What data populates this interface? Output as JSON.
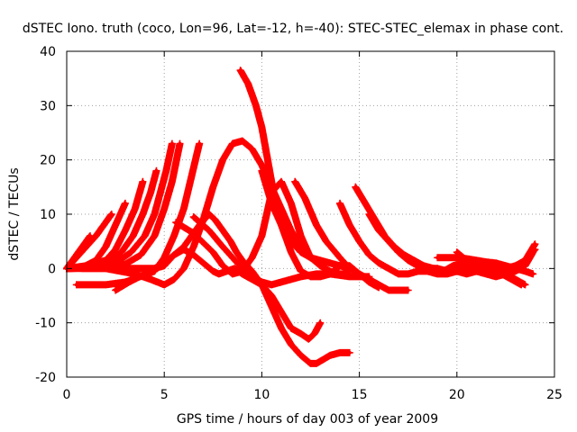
{
  "chart_data": {
    "type": "scatter",
    "title": "dSTEC Iono. truth (coco, Lon=96, Lat=-12, h=-40): STEC-STEC_elemax in phase cont.",
    "xlabel": "GPS time / hours of day 003 of year 2009",
    "ylabel": "dSTEC  / TECUs",
    "xlim": [
      0,
      25
    ],
    "ylim": [
      -20,
      40
    ],
    "xticks": [
      0,
      5,
      10,
      15,
      20,
      25
    ],
    "yticks": [
      -20,
      -10,
      0,
      10,
      20,
      30,
      40
    ],
    "xtick_labels": [
      "0",
      "5",
      "10",
      "15",
      "20",
      "25"
    ],
    "ytick_labels": [
      "-20",
      "-10",
      "0",
      "10",
      "20",
      "30",
      "40"
    ],
    "grid": true,
    "grid_style": "dotted",
    "legend": "none",
    "marker": "plus",
    "color": "#ff0000",
    "series": [
      {
        "x": [
          0.0,
          0.3,
          0.6,
          0.9,
          1.2
        ],
        "y": [
          0,
          1.5,
          3,
          4.5,
          6
        ]
      },
      {
        "x": [
          0.0,
          0.5,
          1.0,
          1.5,
          2.0,
          2.3
        ],
        "y": [
          0,
          2,
          4,
          6,
          8.5,
          10
        ]
      },
      {
        "x": [
          0.0,
          0.8,
          1.5,
          2.0,
          2.5,
          3.0
        ],
        "y": [
          0,
          0.2,
          1.5,
          4,
          8,
          12
        ]
      },
      {
        "x": [
          0.0,
          1.0,
          2.0,
          2.5,
          3.0,
          3.5,
          3.9
        ],
        "y": [
          0,
          0.5,
          1.5,
          3.5,
          7,
          11,
          16
        ]
      },
      {
        "x": [
          0.0,
          1.0,
          2.0,
          2.8,
          3.4,
          3.9,
          4.3,
          4.6
        ],
        "y": [
          0,
          0.3,
          1,
          3,
          6,
          10,
          14,
          18
        ]
      },
      {
        "x": [
          0.0,
          1.5,
          2.5,
          3.3,
          4.0,
          4.5,
          4.8,
          5.1,
          5.4
        ],
        "y": [
          0,
          0.2,
          1,
          3,
          6,
          10,
          14,
          18,
          23
        ]
      },
      {
        "x": [
          0.0,
          2.0,
          3.0,
          3.8,
          4.5,
          5.0,
          5.4,
          5.8
        ],
        "y": [
          0,
          0.2,
          0.8,
          2.5,
          6,
          11,
          16,
          23
        ]
      },
      {
        "x": [
          0.5,
          2.0,
          3.0,
          4.5,
          5.0,
          5.5,
          6.0,
          6.4,
          6.8
        ],
        "y": [
          -3,
          -3,
          -2.5,
          -0.5,
          2,
          6,
          11,
          17,
          23
        ]
      },
      {
        "x": [
          0.8,
          2.0,
          3.0,
          4.0,
          4.5,
          5.0,
          5.5,
          6.0,
          6.5,
          7.0,
          7.5,
          7.8,
          8.2,
          8.6,
          9.0,
          9.5,
          10.0,
          10.5,
          11.0,
          11.5,
          12.0,
          12.4,
          12.7,
          13.0
        ],
        "y": [
          0,
          0,
          0,
          0,
          0,
          0.5,
          2.5,
          3.5,
          2.5,
          1,
          -0.5,
          -1,
          -0.5,
          0,
          -1,
          -2,
          -3,
          -5,
          -8,
          -11,
          -12,
          -13,
          -12,
          -10
        ]
      },
      {
        "x": [
          2.5,
          3.2,
          4.0,
          5.0,
          6.0,
          6.8,
          7.3,
          7.6,
          8.0,
          8.4,
          8.7,
          9.0,
          9.5,
          10.0,
          10.5,
          11.0,
          11.5,
          12.0,
          12.5,
          12.8,
          13.5,
          14.0,
          14.5
        ],
        "y": [
          -4,
          -2.5,
          -1,
          1,
          4,
          8,
          10,
          9,
          7,
          5,
          3,
          1.5,
          -0.5,
          -3,
          -7,
          -11,
          -14,
          -16,
          -17.5,
          -17.5,
          -16,
          -15.5,
          -15.5
        ]
      },
      {
        "x": [
          0.0,
          2.0,
          3.5,
          4.3,
          5.0,
          5.5,
          6.0,
          6.5,
          7.0,
          7.5,
          8.0,
          8.5,
          9.0,
          9.5,
          10.0,
          10.5,
          11.0,
          11.5,
          12.0,
          12.5,
          13.0,
          13.5,
          14.0,
          14.5
        ],
        "y": [
          0,
          0,
          -1,
          -2,
          -3,
          -2,
          0,
          4,
          9,
          15,
          20,
          23,
          23.5,
          22,
          19,
          15,
          11,
          7,
          4,
          2,
          0.5,
          -0.5,
          -1,
          -1
        ]
      },
      {
        "x": [
          5.6,
          6.5,
          7.5,
          8.0,
          8.5,
          9.0,
          9.5,
          10.0,
          10.5,
          11.0,
          11.5,
          12.0,
          12.5,
          13.0
        ],
        "y": [
          8.5,
          6.5,
          3,
          0.5,
          -1,
          -0.5,
          2,
          6,
          14,
          16,
          12,
          6,
          2,
          1
        ]
      },
      {
        "x": [
          6.5,
          7.3,
          8.0,
          8.5,
          9.0,
          9.5,
          10.0,
          10.5,
          11.0,
          11.5,
          12.0,
          12.8,
          13.5,
          14.5,
          15.5
        ],
        "y": [
          9.5,
          7,
          4,
          2,
          0,
          -1.5,
          -2.5,
          -3,
          -2.5,
          -2,
          -1.5,
          -1,
          -1,
          -1.5,
          -1.5
        ]
      },
      {
        "x": [
          8.9,
          9.3,
          9.7,
          10.0,
          10.3,
          10.6,
          11.0,
          11.5,
          12.0,
          12.5,
          13.0,
          13.5,
          14.0,
          14.5,
          15.0,
          15.5,
          16.0
        ],
        "y": [
          36.5,
          34,
          30,
          26,
          20,
          14,
          8,
          3,
          -0.5,
          -1.5,
          -1.5,
          -1,
          0.5,
          0.5,
          -1,
          -2.5,
          -3.5
        ]
      },
      {
        "x": [
          10.0,
          10.5,
          11.0,
          11.5,
          12.0,
          12.5,
          13.0,
          13.5,
          14.0,
          14.5
        ],
        "y": [
          18,
          12,
          8,
          5,
          3,
          2,
          1.5,
          1,
          0.5,
          0
        ]
      },
      {
        "x": [
          11.7,
          12.2,
          12.8,
          13.3,
          14.0,
          14.5,
          15.0,
          15.5,
          16.0,
          16.5,
          17.0,
          17.5
        ],
        "y": [
          16,
          13,
          8,
          5,
          2,
          0,
          -1,
          -2,
          -3,
          -4,
          -4,
          -4
        ]
      },
      {
        "x": [
          14.0,
          14.5,
          15.0,
          15.5,
          16.0,
          16.5,
          17.0,
          17.5,
          18.0,
          18.5,
          19.0,
          19.5,
          20.0,
          20.5,
          21.0
        ],
        "y": [
          12,
          8,
          5,
          2.5,
          1,
          0,
          -1,
          -1,
          -0.5,
          -0.5,
          -1,
          -1,
          -0.5,
          0,
          0.5
        ]
      },
      {
        "x": [
          14.8,
          15.3,
          15.8,
          16.3,
          16.8,
          17.3,
          17.8,
          18.3,
          18.8,
          19.3,
          19.8,
          20.3,
          20.8,
          21.3,
          21.8,
          22.3,
          22.8,
          23.3
        ],
        "y": [
          15,
          12,
          9,
          6,
          4,
          2.5,
          1.5,
          0.5,
          0,
          -0.5,
          0.5,
          1,
          1,
          0.5,
          0,
          -1,
          -2,
          -3
        ]
      },
      {
        "x": [
          15.5,
          16.0,
          16.5,
          17.0,
          17.5,
          18.0,
          18.5,
          19.0,
          19.5,
          20.0,
          20.5,
          21.0,
          21.5,
          22.0,
          22.5,
          23.0,
          23.5
        ],
        "y": [
          10,
          7,
          5,
          3,
          1.5,
          0.5,
          0,
          0,
          -0.5,
          -0.5,
          -1,
          -0.5,
          0,
          0,
          -1,
          -2,
          -3
        ]
      },
      {
        "x": [
          19.0,
          19.5,
          20.0,
          20.5,
          21.0,
          21.5,
          22.0,
          22.5,
          23.0,
          23.5,
          23.9
        ],
        "y": [
          2,
          2,
          2,
          1.8,
          1.5,
          1.2,
          1,
          0.5,
          0,
          -0.5,
          -1
        ]
      },
      {
        "x": [
          20.0,
          20.5,
          21.0,
          21.5,
          22.0,
          22.5,
          23.0,
          23.5,
          24.0
        ],
        "y": [
          3,
          1.5,
          0.5,
          0,
          -0.5,
          -0.5,
          0,
          1.5,
          4.5
        ]
      },
      {
        "x": [
          21.0,
          21.5,
          22.0,
          22.5,
          23.0,
          23.5,
          23.9
        ],
        "y": [
          -0.5,
          -1,
          -1.5,
          -1,
          -0.5,
          0.5,
          3
        ]
      },
      {
        "x": [
          22.0,
          22.5,
          23.0,
          23.5,
          24.0
        ],
        "y": [
          0.5,
          0,
          0.5,
          1.5,
          3.5
        ]
      }
    ]
  }
}
